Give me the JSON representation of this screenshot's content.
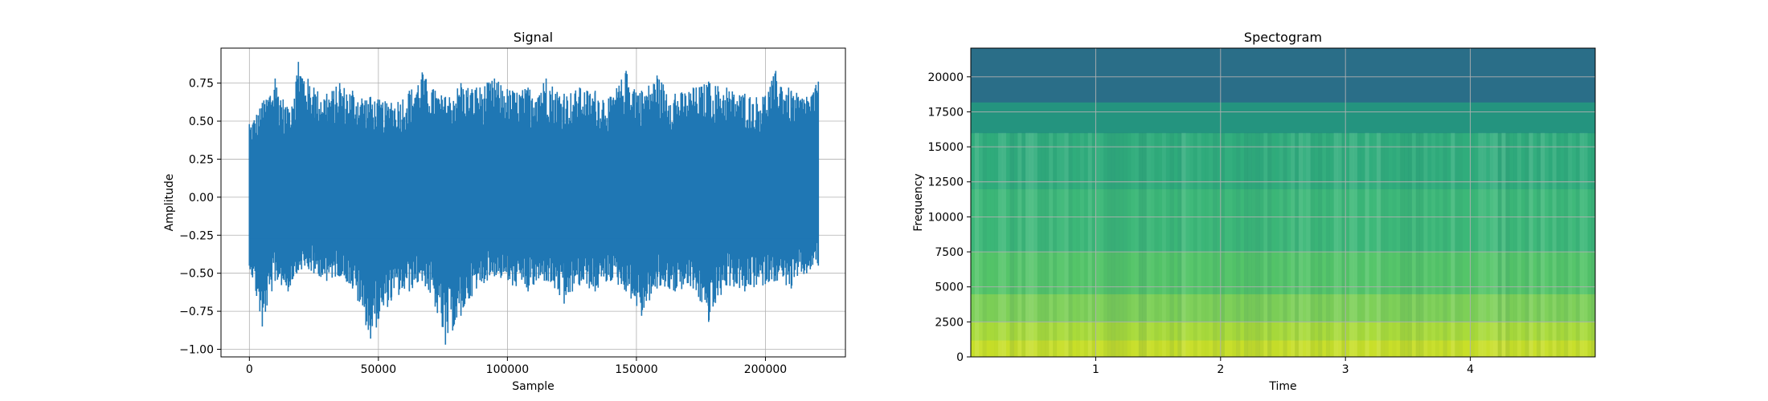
{
  "chart_data": [
    {
      "type": "line",
      "title": "Signal",
      "xlabel": "Sample",
      "ylabel": "Amplitude",
      "xlim": [
        -11000,
        231000
      ],
      "ylim": [
        -1.05,
        0.98
      ],
      "x_ticks": [
        0,
        50000,
        100000,
        150000,
        200000
      ],
      "x_tick_labels": [
        "0",
        "50000",
        "100000",
        "150000",
        "200000"
      ],
      "y_ticks": [
        -1.0,
        -0.75,
        -0.5,
        -0.25,
        0.0,
        0.25,
        0.5,
        0.75
      ],
      "y_tick_labels": [
        "−1.00",
        "−0.75",
        "−0.50",
        "−0.25",
        "0.00",
        "0.25",
        "0.50",
        "0.75"
      ],
      "grid": true,
      "line_color": "#1f77b4",
      "series": [
        {
          "samples": 220500,
          "mean": 0.0,
          "approx_max": 0.89,
          "approx_min": -0.97,
          "envelope": [
            {
              "x": 0,
              "max": 0.48,
              "min": -0.45
            },
            {
              "x": 5000,
              "max": 0.62,
              "min": -0.85
            },
            {
              "x": 10000,
              "max": 0.78,
              "min": -0.55
            },
            {
              "x": 15000,
              "max": 0.58,
              "min": -0.62
            },
            {
              "x": 19000,
              "max": 0.89,
              "min": -0.48
            },
            {
              "x": 25000,
              "max": 0.72,
              "min": -0.5
            },
            {
              "x": 30000,
              "max": 0.68,
              "min": -0.55
            },
            {
              "x": 35000,
              "max": 0.75,
              "min": -0.52
            },
            {
              "x": 40000,
              "max": 0.7,
              "min": -0.6
            },
            {
              "x": 47000,
              "max": 0.66,
              "min": -0.93
            },
            {
              "x": 55000,
              "max": 0.62,
              "min": -0.68
            },
            {
              "x": 62000,
              "max": 0.7,
              "min": -0.62
            },
            {
              "x": 67000,
              "max": 0.82,
              "min": -0.55
            },
            {
              "x": 72000,
              "max": 0.7,
              "min": -0.72
            },
            {
              "x": 76000,
              "max": 0.66,
              "min": -0.97
            },
            {
              "x": 82000,
              "max": 0.75,
              "min": -0.78
            },
            {
              "x": 88000,
              "max": 0.72,
              "min": -0.6
            },
            {
              "x": 95000,
              "max": 0.78,
              "min": -0.52
            },
            {
              "x": 102000,
              "max": 0.7,
              "min": -0.58
            },
            {
              "x": 108000,
              "max": 0.72,
              "min": -0.62
            },
            {
              "x": 115000,
              "max": 0.78,
              "min": -0.55
            },
            {
              "x": 122000,
              "max": 0.68,
              "min": -0.7
            },
            {
              "x": 128000,
              "max": 0.72,
              "min": -0.58
            },
            {
              "x": 134000,
              "max": 0.7,
              "min": -0.62
            },
            {
              "x": 140000,
              "max": 0.66,
              "min": -0.55
            },
            {
              "x": 146000,
              "max": 0.83,
              "min": -0.62
            },
            {
              "x": 152000,
              "max": 0.7,
              "min": -0.78
            },
            {
              "x": 158000,
              "max": 0.8,
              "min": -0.6
            },
            {
              "x": 165000,
              "max": 0.68,
              "min": -0.62
            },
            {
              "x": 172000,
              "max": 0.72,
              "min": -0.6
            },
            {
              "x": 178000,
              "max": 0.76,
              "min": -0.82
            },
            {
              "x": 185000,
              "max": 0.72,
              "min": -0.58
            },
            {
              "x": 192000,
              "max": 0.68,
              "min": -0.62
            },
            {
              "x": 199000,
              "max": 0.66,
              "min": -0.58
            },
            {
              "x": 204000,
              "max": 0.83,
              "min": -0.55
            },
            {
              "x": 210000,
              "max": 0.7,
              "min": -0.6
            },
            {
              "x": 216000,
              "max": 0.66,
              "min": -0.5
            },
            {
              "x": 220500,
              "max": 0.76,
              "min": -0.45
            }
          ]
        }
      ]
    },
    {
      "type": "heatmap",
      "title": "Spectogram",
      "xlabel": "Time",
      "ylabel": "Frequency",
      "xlim": [
        0,
        5.0
      ],
      "ylim": [
        0,
        22050
      ],
      "x_ticks": [
        1,
        2,
        3,
        4
      ],
      "x_tick_labels": [
        "1",
        "2",
        "3",
        "4"
      ],
      "y_ticks": [
        0,
        2500,
        5000,
        7500,
        10000,
        12500,
        15000,
        17500,
        20000
      ],
      "y_tick_labels": [
        "0",
        "2500",
        "5000",
        "7500",
        "10000",
        "12500",
        "15000",
        "17500",
        "20000"
      ],
      "grid": true,
      "colormap": "viridis",
      "frequency_bands": [
        {
          "from": 0,
          "to": 1200,
          "color": "#c8df28"
        },
        {
          "from": 1200,
          "to": 2500,
          "color": "#a9db3a"
        },
        {
          "from": 2500,
          "to": 4500,
          "color": "#7dd057"
        },
        {
          "from": 4500,
          "to": 7500,
          "color": "#54c569"
        },
        {
          "from": 7500,
          "to": 12000,
          "color": "#3cb878"
        },
        {
          "from": 12000,
          "to": 16000,
          "color": "#30ad7c"
        },
        {
          "from": 16000,
          "to": 18200,
          "color": "#24947f"
        },
        {
          "from": 18200,
          "to": 22050,
          "color": "#2a6e88"
        }
      ]
    }
  ]
}
